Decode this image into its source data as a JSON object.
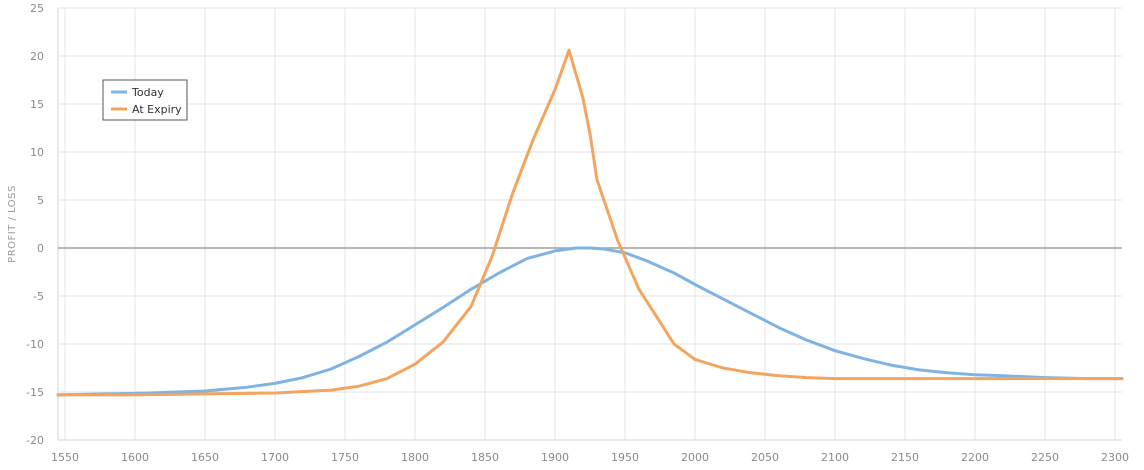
{
  "chart_data": {
    "type": "line",
    "title": "",
    "xlabel": "",
    "ylabel": "PROFIT / LOSS",
    "xlim": [
      1545,
      2305
    ],
    "ylim": [
      -20,
      25
    ],
    "x_ticks": [
      1550,
      1600,
      1650,
      1700,
      1750,
      1800,
      1850,
      1900,
      1950,
      2000,
      2050,
      2100,
      2150,
      2200,
      2250,
      2300
    ],
    "y_ticks": [
      -20,
      -15,
      -10,
      -5,
      0,
      5,
      10,
      15,
      20,
      25
    ],
    "grid": true,
    "zero_line": true,
    "legend_position": "top-left",
    "series": [
      {
        "name": "Today",
        "color": "#7fb3e3",
        "x": [
          1545,
          1580,
          1610,
          1630,
          1650,
          1680,
          1700,
          1720,
          1740,
          1760,
          1780,
          1800,
          1820,
          1840,
          1860,
          1880,
          1900,
          1915,
          1925,
          1935,
          1950,
          1965,
          1985,
          2000,
          2020,
          2040,
          2060,
          2080,
          2100,
          2120,
          2140,
          2160,
          2180,
          2200,
          2220,
          2250,
          2280,
          2305
        ],
        "values": [
          -15.3,
          -15.2,
          -15.1,
          -15.0,
          -14.9,
          -14.5,
          -14.1,
          -13.5,
          -12.6,
          -11.3,
          -9.8,
          -8.0,
          -6.2,
          -4.3,
          -2.6,
          -1.1,
          -0.3,
          0.0,
          0.0,
          -0.1,
          -0.5,
          -1.3,
          -2.6,
          -3.8,
          -5.3,
          -6.8,
          -8.3,
          -9.6,
          -10.7,
          -11.5,
          -12.2,
          -12.7,
          -13.0,
          -13.2,
          -13.3,
          -13.5,
          -13.6,
          -13.6
        ]
      },
      {
        "name": "At Expiry",
        "color": "#f3a45e",
        "x": [
          1545,
          1600,
          1650,
          1700,
          1740,
          1760,
          1780,
          1800,
          1820,
          1840,
          1855,
          1870,
          1885,
          1900,
          1910,
          1920,
          1925,
          1930,
          1945,
          1960,
          1975,
          1985,
          2000,
          2020,
          2040,
          2060,
          2080,
          2100,
          2130,
          2160,
          2200,
          2250,
          2305
        ],
        "values": [
          -15.3,
          -15.3,
          -15.2,
          -15.1,
          -14.8,
          -14.4,
          -13.6,
          -12.1,
          -9.8,
          -6.1,
          -0.9,
          5.8,
          11.5,
          16.5,
          20.6,
          15.6,
          11.9,
          7.1,
          0.7,
          -4.3,
          -7.7,
          -10.0,
          -11.6,
          -12.5,
          -13.0,
          -13.3,
          -13.5,
          -13.6,
          -13.6,
          -13.6,
          -13.6,
          -13.6,
          -13.6
        ]
      }
    ]
  }
}
